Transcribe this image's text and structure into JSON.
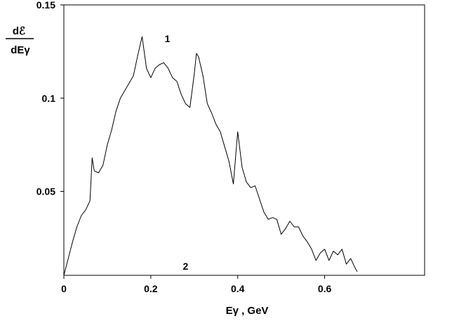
{
  "chart_data": {
    "type": "line",
    "ylabel_top": "dℰ",
    "ylabel_bottom": "dEγ",
    "xlabel": "Eγ , GeV",
    "xlim": [
      0,
      0.83
    ],
    "ylim": [
      0.005,
      0.15
    ],
    "x_ticks": [
      0,
      0.2,
      0.4,
      0.6
    ],
    "x_tick_labels": [
      "0",
      "0.2",
      "0.4",
      "0.6"
    ],
    "y_ticks": [
      0.05,
      0.1,
      0.15
    ],
    "y_tick_labels": [
      "0.05",
      "0.1",
      "0.15"
    ],
    "grid": false,
    "legend": "none",
    "series": [
      {
        "name": "1",
        "x": [
          0,
          0.01,
          0.02,
          0.03,
          0.04,
          0.05,
          0.06,
          0.065,
          0.07,
          0.08,
          0.09,
          0.1,
          0.11,
          0.12,
          0.13,
          0.14,
          0.15,
          0.16,
          0.17,
          0.175,
          0.18,
          0.19,
          0.2,
          0.21,
          0.22,
          0.23,
          0.24,
          0.25,
          0.26,
          0.27,
          0.28,
          0.29,
          0.3,
          0.305,
          0.31,
          0.32,
          0.33,
          0.34,
          0.35,
          0.36,
          0.37,
          0.38,
          0.39,
          0.4,
          0.41,
          0.42,
          0.43,
          0.44,
          0.45,
          0.46,
          0.47,
          0.48,
          0.49,
          0.5,
          0.51,
          0.52,
          0.53,
          0.54,
          0.55,
          0.56,
          0.57,
          0.58,
          0.59,
          0.6,
          0.61,
          0.62,
          0.63,
          0.64,
          0.65,
          0.66,
          0.67,
          0.675
        ],
        "values": [
          0.005,
          0.014,
          0.023,
          0.031,
          0.037,
          0.04,
          0.045,
          0.068,
          0.061,
          0.06,
          0.064,
          0.075,
          0.083,
          0.093,
          0.1,
          0.104,
          0.108,
          0.112,
          0.123,
          0.128,
          0.133,
          0.116,
          0.111,
          0.116,
          0.118,
          0.119,
          0.116,
          0.111,
          0.109,
          0.102,
          0.097,
          0.095,
          0.113,
          0.124,
          0.122,
          0.112,
          0.097,
          0.092,
          0.086,
          0.082,
          0.074,
          0.066,
          0.054,
          0.082,
          0.063,
          0.055,
          0.052,
          0.053,
          0.046,
          0.039,
          0.035,
          0.036,
          0.035,
          0.027,
          0.03,
          0.034,
          0.031,
          0.031,
          0.026,
          0.023,
          0.019,
          0.013,
          0.017,
          0.019,
          0.013,
          0.018,
          0.016,
          0.019,
          0.011,
          0.014,
          0.009,
          0.007
        ]
      },
      {
        "name": "2",
        "x": [
          0,
          0.83
        ],
        "values": [
          0.005,
          0.005
        ]
      }
    ]
  }
}
